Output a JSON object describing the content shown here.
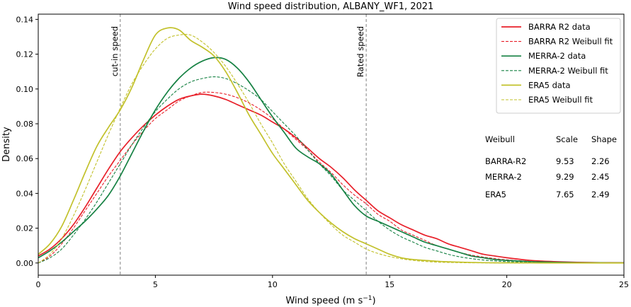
{
  "chart_data": {
    "type": "line",
    "title": "Wind speed distribution, ALBANY_WF1, 2021",
    "xlabel": "Wind speed (m s",
    "xlabel_sup": "−1",
    "xlabel_end": ")",
    "ylabel": "Density",
    "xlim": [
      0,
      25
    ],
    "ylim": [
      -0.007,
      0.143
    ],
    "xticks": [
      0,
      5,
      10,
      15,
      20,
      25
    ],
    "yticks": [
      0.0,
      0.02,
      0.04,
      0.06,
      0.08,
      0.1,
      0.12,
      0.14
    ],
    "grid": false,
    "legend_position": "top-right",
    "vlines": [
      {
        "x": 3.5,
        "label": "cut-in speed"
      },
      {
        "x": 14.0,
        "label": "Rated speed"
      }
    ],
    "series": [
      {
        "name": "BARRA R2 data",
        "color": "#e8202a",
        "dash": "solid",
        "x": [
          0,
          0.5,
          1,
          1.5,
          2,
          2.5,
          3,
          3.5,
          4,
          4.5,
          5,
          5.5,
          6,
          6.5,
          7,
          7.5,
          8,
          8.5,
          9,
          9.5,
          10,
          10.5,
          11,
          11.5,
          12,
          12.5,
          13,
          13.5,
          14,
          14.5,
          15,
          15.5,
          16,
          16.5,
          17,
          17.5,
          18,
          18.5,
          19,
          19.5,
          20,
          21,
          22,
          23,
          24,
          25
        ],
        "y": [
          0.004,
          0.008,
          0.014,
          0.022,
          0.032,
          0.043,
          0.054,
          0.064,
          0.072,
          0.079,
          0.085,
          0.09,
          0.094,
          0.096,
          0.097,
          0.096,
          0.094,
          0.091,
          0.088,
          0.085,
          0.081,
          0.077,
          0.072,
          0.066,
          0.06,
          0.055,
          0.049,
          0.042,
          0.036,
          0.03,
          0.026,
          0.022,
          0.019,
          0.016,
          0.014,
          0.011,
          0.009,
          0.007,
          0.005,
          0.004,
          0.003,
          0.0015,
          0.0008,
          0.0004,
          0.0002,
          0.0001
        ]
      },
      {
        "name": "BARRA R2 Weibull fit",
        "color": "#e8202a",
        "dash": "dashed",
        "x": [
          0,
          0.5,
          1,
          1.5,
          2,
          2.5,
          3,
          3.5,
          4,
          4.5,
          5,
          5.5,
          6,
          6.5,
          7,
          7.5,
          8,
          8.5,
          9,
          9.5,
          10,
          10.5,
          11,
          11.5,
          12,
          12.5,
          13,
          13.5,
          14,
          14.5,
          15,
          15.5,
          16,
          16.5,
          17,
          17.5,
          18,
          18.5,
          19,
          19.5,
          20,
          21,
          22,
          23,
          24,
          25
        ],
        "y": [
          0.0,
          0.004,
          0.011,
          0.02,
          0.03,
          0.04,
          0.05,
          0.059,
          0.068,
          0.076,
          0.083,
          0.088,
          0.093,
          0.096,
          0.098,
          0.098,
          0.097,
          0.095,
          0.092,
          0.088,
          0.083,
          0.077,
          0.071,
          0.065,
          0.058,
          0.052,
          0.045,
          0.039,
          0.034,
          0.028,
          0.024,
          0.019,
          0.016,
          0.013,
          0.01,
          0.008,
          0.006,
          0.0045,
          0.0034,
          0.0025,
          0.0018,
          0.0009,
          0.0004,
          0.0002,
          0.0001,
          4e-05
        ]
      },
      {
        "name": "MERRA-2 data",
        "color": "#178244",
        "dash": "solid",
        "x": [
          0,
          0.5,
          1,
          1.5,
          2,
          2.5,
          3,
          3.5,
          4,
          4.5,
          5,
          5.5,
          6,
          6.5,
          7,
          7.5,
          8,
          8.5,
          9,
          9.5,
          10,
          10.5,
          11,
          11.5,
          12,
          12.5,
          13,
          13.5,
          14,
          14.5,
          15,
          15.5,
          16,
          16.5,
          17,
          17.5,
          18,
          18.5,
          19,
          19.5,
          20,
          21,
          22,
          23,
          24,
          25
        ],
        "y": [
          0.003,
          0.007,
          0.012,
          0.018,
          0.024,
          0.031,
          0.039,
          0.05,
          0.063,
          0.076,
          0.088,
          0.098,
          0.106,
          0.112,
          0.116,
          0.118,
          0.117,
          0.112,
          0.104,
          0.094,
          0.084,
          0.075,
          0.066,
          0.061,
          0.057,
          0.051,
          0.042,
          0.033,
          0.027,
          0.024,
          0.021,
          0.018,
          0.015,
          0.012,
          0.01,
          0.008,
          0.006,
          0.004,
          0.003,
          0.002,
          0.0015,
          0.0008,
          0.0004,
          0.0002,
          0.0001,
          5e-05
        ]
      },
      {
        "name": "MERRA-2 Weibull fit",
        "color": "#178244",
        "dash": "dashed",
        "x": [
          0,
          0.5,
          1,
          1.5,
          2,
          2.5,
          3,
          3.5,
          4,
          4.5,
          5,
          5.5,
          6,
          6.5,
          7,
          7.5,
          8,
          8.5,
          9,
          9.5,
          10,
          10.5,
          11,
          11.5,
          12,
          12.5,
          13,
          13.5,
          14,
          14.5,
          15,
          15.5,
          16,
          16.5,
          17,
          17.5,
          18,
          18.5,
          19,
          19.5,
          20,
          21,
          22,
          23,
          24,
          25
        ],
        "y": [
          0.0,
          0.003,
          0.008,
          0.016,
          0.025,
          0.035,
          0.046,
          0.057,
          0.068,
          0.078,
          0.087,
          0.094,
          0.1,
          0.104,
          0.106,
          0.107,
          0.106,
          0.103,
          0.099,
          0.094,
          0.087,
          0.08,
          0.073,
          0.065,
          0.057,
          0.05,
          0.042,
          0.036,
          0.03,
          0.024,
          0.019,
          0.015,
          0.012,
          0.009,
          0.007,
          0.005,
          0.0035,
          0.0025,
          0.0017,
          0.0012,
          0.0008,
          0.0003,
          0.0001,
          4e-05,
          1e-05,
          0.0
        ]
      },
      {
        "name": "ERA5 data",
        "color": "#c2c12b",
        "dash": "solid",
        "x": [
          0,
          0.5,
          1,
          1.5,
          2,
          2.5,
          3,
          3.5,
          4,
          4.5,
          5,
          5.5,
          6,
          6.5,
          7,
          7.5,
          8,
          8.5,
          9,
          9.5,
          10,
          10.5,
          11,
          11.5,
          12,
          12.5,
          13,
          13.5,
          14,
          14.5,
          15,
          15.5,
          16,
          16.5,
          17,
          17.5,
          18,
          18.5,
          19,
          19.5,
          20,
          21,
          22,
          23,
          24,
          25
        ],
        "y": [
          0.005,
          0.011,
          0.021,
          0.036,
          0.052,
          0.067,
          0.078,
          0.088,
          0.101,
          0.117,
          0.131,
          0.135,
          0.134,
          0.128,
          0.124,
          0.119,
          0.11,
          0.098,
          0.085,
          0.074,
          0.063,
          0.054,
          0.045,
          0.036,
          0.029,
          0.023,
          0.018,
          0.014,
          0.011,
          0.008,
          0.005,
          0.003,
          0.002,
          0.0015,
          0.001,
          0.0007,
          0.0005,
          0.0003,
          0.0002,
          0.0001,
          0.0001,
          5e-05,
          0.0,
          0.0,
          0.0,
          0.0
        ]
      },
      {
        "name": "ERA5 Weibull fit",
        "color": "#c2c12b",
        "dash": "dashed",
        "x": [
          0,
          0.5,
          1,
          1.5,
          2,
          2.5,
          3,
          3.5,
          4,
          4.5,
          5,
          5.5,
          6,
          6.5,
          7,
          7.5,
          8,
          8.5,
          9,
          9.5,
          10,
          10.5,
          11,
          11.5,
          12,
          12.5,
          13,
          13.5,
          14,
          14.5,
          15,
          15.5,
          16,
          16.5,
          17,
          17.5,
          18,
          18.5,
          19,
          19.5,
          20,
          21,
          22,
          23,
          24,
          25
        ],
        "y": [
          0.0,
          0.005,
          0.014,
          0.027,
          0.042,
          0.058,
          0.074,
          0.089,
          0.103,
          0.114,
          0.123,
          0.129,
          0.131,
          0.131,
          0.127,
          0.121,
          0.113,
          0.103,
          0.092,
          0.08,
          0.069,
          0.057,
          0.047,
          0.037,
          0.029,
          0.022,
          0.016,
          0.012,
          0.008,
          0.0055,
          0.0037,
          0.0024,
          0.0015,
          0.0009,
          0.0005,
          0.0003,
          0.00017,
          0.0001,
          5e-05,
          2e-05,
          1e-05,
          0.0,
          0.0,
          0.0,
          0.0,
          0.0
        ]
      }
    ],
    "weibull_table": {
      "header": [
        "Weibull",
        "Scale",
        "Shape"
      ],
      "rows": [
        [
          "BARRA-R2",
          "9.53",
          "2.26"
        ],
        [
          "MERRA-2",
          "9.29",
          "2.45"
        ],
        [
          "ERA5",
          "7.65",
          "2.49"
        ]
      ]
    }
  }
}
